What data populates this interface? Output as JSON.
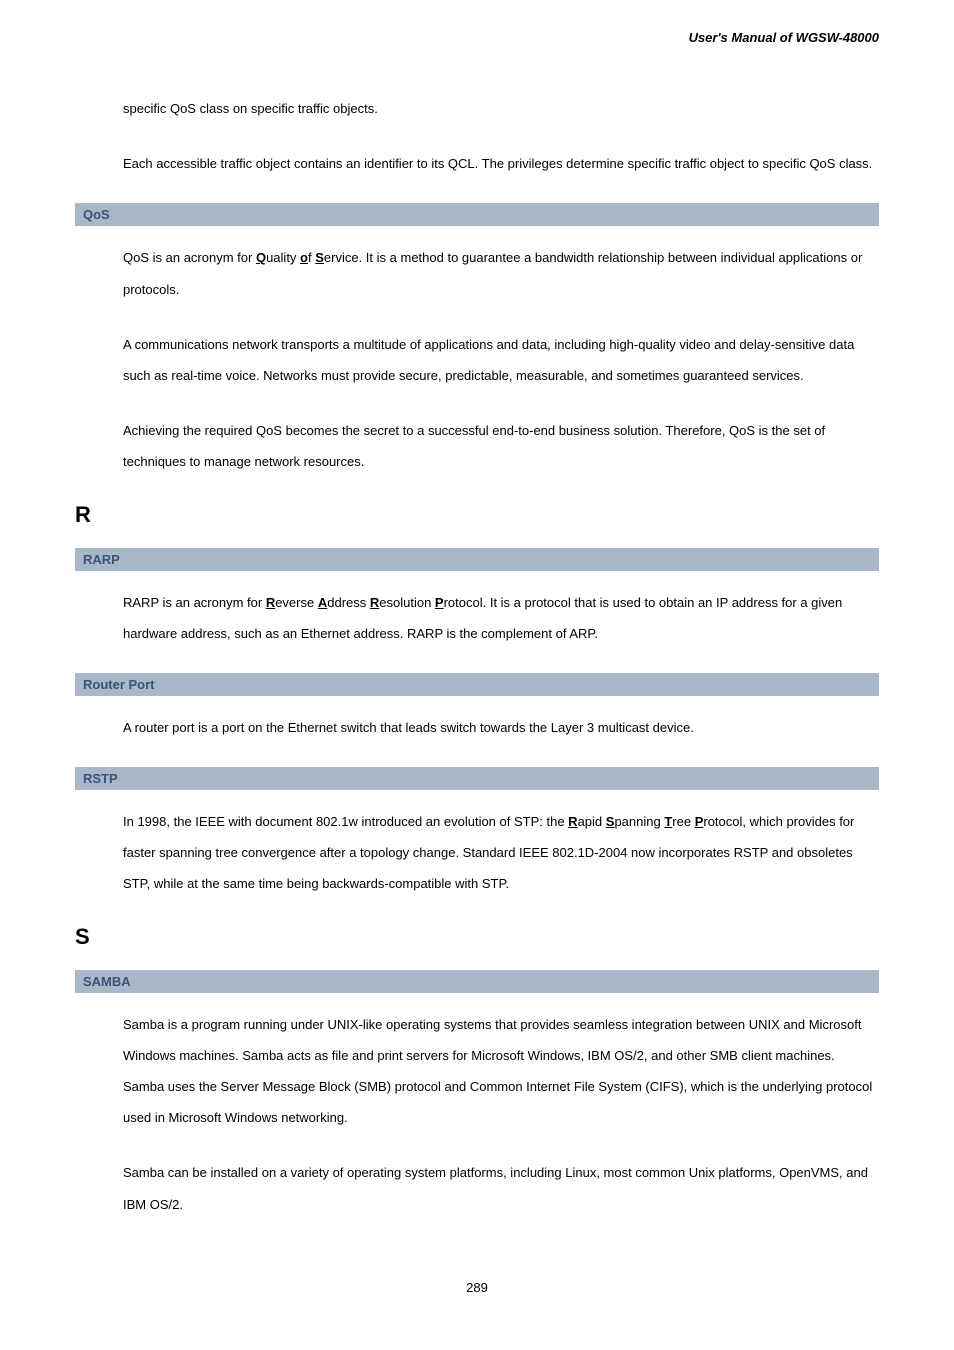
{
  "header": {
    "title": "User's Manual of WGSW-48000"
  },
  "intro": {
    "p1": "specific QoS class on specific traffic objects.",
    "p2": "Each accessible traffic object contains an identifier to its QCL. The privileges determine specific traffic object to specific QoS class."
  },
  "terms": {
    "qos": {
      "label": "QoS",
      "p1_pre": "QoS is an acronym for ",
      "p1_q": "Q",
      "p1_mid1": "uality ",
      "p1_o": "o",
      "p1_mid2": "f ",
      "p1_s": "S",
      "p1_post": "ervice. It is a method to guarantee a bandwidth relationship between individual applications or protocols.",
      "p2": "A communications network transports a multitude of applications and data, including high-quality video and delay-sensitive data such as real-time voice. Networks must provide secure, predictable, measurable, and sometimes guaranteed services.",
      "p3": "Achieving the required QoS becomes the secret to a successful end-to-end business solution. Therefore, QoS is the set of techniques to manage network resources."
    },
    "rarp": {
      "label": "RARP",
      "p1_pre": "RARP is an acronym for ",
      "p1_r": "R",
      "p1_mid1": "everse ",
      "p1_a": "A",
      "p1_mid2": "ddress ",
      "p1_r2": "R",
      "p1_mid3": "esolution ",
      "p1_p": "P",
      "p1_post": "rotocol. It is a protocol that is used to obtain an IP address for a given hardware address, such as an Ethernet address. RARP is the complement of ARP."
    },
    "routerport": {
      "label": "Router Port",
      "p1": "A router port is a port on the Ethernet switch that leads switch towards the Layer 3 multicast device."
    },
    "rstp": {
      "label": "RSTP",
      "p1_pre": "In 1998, the IEEE with document 802.1w introduced an evolution of STP: the ",
      "p1_r": "R",
      "p1_mid1": "apid ",
      "p1_s": "S",
      "p1_mid2": "panning ",
      "p1_t": "T",
      "p1_mid3": "ree ",
      "p1_p": "P",
      "p1_post": "rotocol, which provides for faster spanning tree convergence after a topology change. Standard IEEE 802.1D-2004 now incorporates RSTP and obsoletes STP, while at the same time being backwards-compatible with STP."
    },
    "samba": {
      "label": "SAMBA",
      "p1": "Samba is a program running under UNIX-like operating systems that provides seamless integration between UNIX and Microsoft Windows machines. Samba acts as file and print servers for Microsoft Windows, IBM OS/2, and other SMB client machines. Samba uses the Server Message Block (SMB) protocol and Common Internet File System (CIFS), which is the underlying protocol used in Microsoft Windows networking.",
      "p2": "Samba can be installed on a variety of operating system platforms, including Linux, most common Unix platforms, OpenVMS, and IBM OS/2."
    }
  },
  "sections": {
    "r": "R",
    "s": "S"
  },
  "page_number": "289",
  "colors": {
    "term_bg": "#a8b8c8",
    "term_fg": "#3a5278",
    "text": "#000000",
    "background": "#ffffff"
  },
  "typography": {
    "body_fontsize": 13,
    "section_letter_fontsize": 22,
    "line_height": 2.4,
    "font_family": "Arial, Helvetica, sans-serif"
  }
}
